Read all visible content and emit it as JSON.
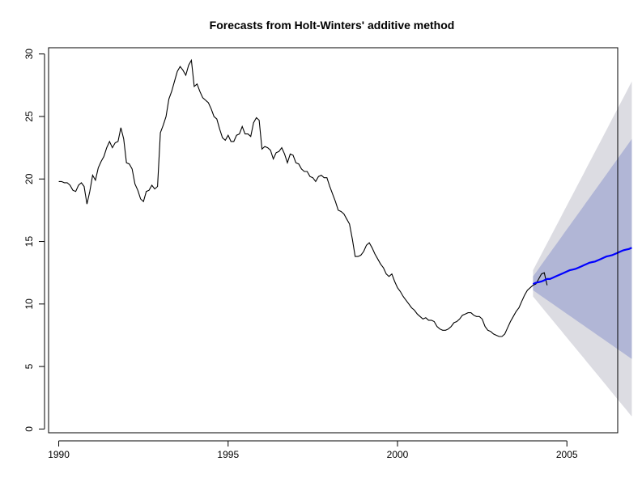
{
  "chart_data": {
    "type": "line",
    "title": "Forecasts from Holt-Winters' additive method",
    "xlabel": "",
    "ylabel": "",
    "xlim": [
      1989.7,
      2006.5
    ],
    "ylim": [
      -0.3,
      30.5
    ],
    "x_ticks": [
      1990,
      1995,
      2000,
      2005
    ],
    "y_ticks": [
      0,
      5,
      10,
      15,
      20,
      25,
      30
    ],
    "grid": false,
    "legend": "none",
    "colors": {
      "observed": "#000000",
      "forecast": "#0000ff",
      "band_80": "#b1b6d6",
      "band_95": "#dcdce2"
    },
    "observed": {
      "start": 1990,
      "frequency": 12,
      "values": [
        19.8,
        19.8,
        19.7,
        19.7,
        19.5,
        19.1,
        19.0,
        19.5,
        19.7,
        19.4,
        18.0,
        19.0,
        20.3,
        19.9,
        20.9,
        21.4,
        21.8,
        22.5,
        23.0,
        22.5,
        22.9,
        23.0,
        24.1,
        23.2,
        21.3,
        21.2,
        20.8,
        19.6,
        19.1,
        18.4,
        18.2,
        19.0,
        19.1,
        19.5,
        19.2,
        19.4,
        23.7,
        24.3,
        25.0,
        26.4,
        27.0,
        27.8,
        28.6,
        29.0,
        28.7,
        28.3,
        29.1,
        29.5,
        27.4,
        27.6,
        27.0,
        26.5,
        26.3,
        26.1,
        25.6,
        25.0,
        24.8,
        24.0,
        23.3,
        23.1,
        23.5,
        23.0,
        23.0,
        23.5,
        23.6,
        24.2,
        23.6,
        23.6,
        23.4,
        24.5,
        24.9,
        24.7,
        22.4,
        22.6,
        22.5,
        22.3,
        21.6,
        22.1,
        22.2,
        22.5,
        22.0,
        21.3,
        22.0,
        21.9,
        21.3,
        21.2,
        20.8,
        20.6,
        20.6,
        20.2,
        20.1,
        19.8,
        20.2,
        20.3,
        20.1,
        20.1,
        19.4,
        18.8,
        18.2,
        17.5,
        17.4,
        17.2,
        16.8,
        16.4,
        15.2,
        13.8,
        13.8,
        13.9,
        14.2,
        14.7,
        14.9,
        14.5,
        14.0,
        13.6,
        13.2,
        12.9,
        12.4,
        12.2,
        12.4,
        11.8,
        11.3,
        11.0,
        10.6,
        10.3,
        10.0,
        9.7,
        9.5,
        9.2,
        9.0,
        8.8,
        8.9,
        8.7,
        8.7,
        8.6,
        8.2,
        8.0,
        7.9,
        7.9,
        8.0,
        8.2,
        8.5,
        8.6,
        8.8,
        9.1,
        9.2,
        9.3,
        9.3,
        9.1,
        9.0,
        9.0,
        8.8,
        8.2,
        7.9,
        7.8,
        7.6,
        7.5,
        7.4,
        7.4,
        7.6,
        8.1,
        8.6,
        9.0,
        9.4,
        9.7,
        10.2,
        10.7,
        11.1,
        11.3,
        11.5,
        11.6,
        12.0,
        12.4,
        12.5,
        11.5
      ]
    },
    "forecast": {
      "start": 2004.0,
      "frequency": 12,
      "mean": [
        11.6,
        11.7,
        11.75,
        11.8,
        11.9,
        12.0,
        12.0,
        12.1,
        12.2,
        12.3,
        12.4,
        12.5,
        12.6,
        12.7,
        12.75,
        12.8,
        12.9,
        13.0,
        13.1,
        13.2,
        13.3,
        13.35,
        13.4,
        13.5,
        13.6,
        13.7,
        13.8,
        13.85,
        13.9,
        14.0,
        14.1,
        14.2,
        14.3,
        14.35,
        14.4,
        14.5
      ],
      "lo80_end": 5.6,
      "hi80_end": 23.2,
      "lo95_end": 1.0,
      "hi95_end": 27.8,
      "lo80_start": 11.1,
      "hi80_start": 12.2,
      "lo95_start": 10.6,
      "hi95_start": 12.7
    }
  }
}
